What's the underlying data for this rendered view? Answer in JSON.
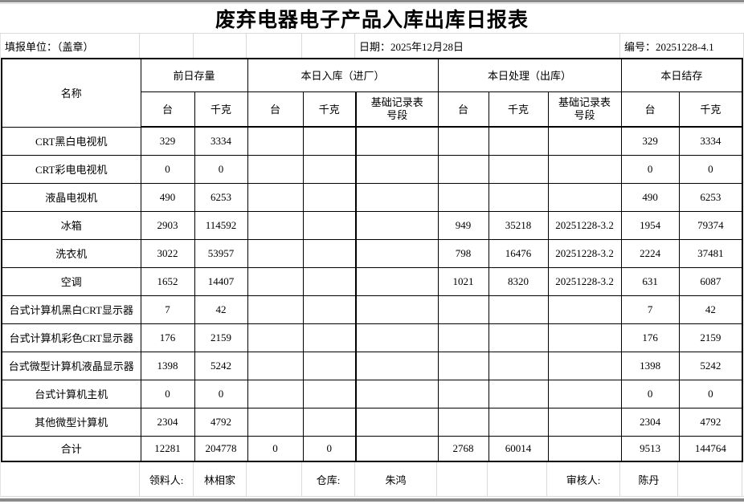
{
  "page": {
    "title": "废弃电器电子产品入库出库日报表"
  },
  "info": {
    "unit": "填报单位：（盖章）",
    "date": "日期：2025年12月28日",
    "code": "编号：20251228-4.1"
  },
  "table": {
    "header": {
      "name": "名称",
      "groups": [
        {
          "label": "前日存量",
          "cols": [
            "台",
            "千克"
          ]
        },
        {
          "label": "本日入库（进厂）",
          "cols": [
            "台",
            "千克",
            "基础记录表号段"
          ]
        },
        {
          "label": "本日处理（出库）",
          "cols": [
            "台",
            "千克",
            "基础记录表号段"
          ]
        },
        {
          "label": "本日结存",
          "cols": [
            "台",
            "千克"
          ]
        }
      ]
    },
    "rows": [
      {
        "name": "CRT黑白电视机",
        "cells": [
          "329",
          "3334",
          "",
          "",
          "",
          "",
          "",
          "",
          "329",
          "3334"
        ]
      },
      {
        "name": "CRT彩电电视机",
        "cells": [
          "0",
          "0",
          "",
          "",
          "",
          "",
          "",
          "",
          "0",
          "0"
        ]
      },
      {
        "name": "液晶电视机",
        "cells": [
          "490",
          "6253",
          "",
          "",
          "",
          "",
          "",
          "",
          "490",
          "6253"
        ]
      },
      {
        "name": "冰箱",
        "cells": [
          "2903",
          "114592",
          "",
          "",
          "",
          "949",
          "35218",
          "20251228-3.2",
          "1954",
          "79374"
        ]
      },
      {
        "name": "洗衣机",
        "cells": [
          "3022",
          "53957",
          "",
          "",
          "",
          "798",
          "16476",
          "20251228-3.2",
          "2224",
          "37481"
        ]
      },
      {
        "name": "空调",
        "cells": [
          "1652",
          "14407",
          "",
          "",
          "",
          "1021",
          "8320",
          "20251228-3.2",
          "631",
          "6087"
        ]
      },
      {
        "name": "台式计算机黑白CRT显示器",
        "cells": [
          "7",
          "42",
          "",
          "",
          "",
          "",
          "",
          "",
          "7",
          "42"
        ]
      },
      {
        "name": "台式计算机彩色CRT显示器",
        "cells": [
          "176",
          "2159",
          "",
          "",
          "",
          "",
          "",
          "",
          "176",
          "2159"
        ]
      },
      {
        "name": "台式微型计算机液晶显示器",
        "cells": [
          "1398",
          "5242",
          "",
          "",
          "",
          "",
          "",
          "",
          "1398",
          "5242"
        ]
      },
      {
        "name": "台式计算机主机",
        "cells": [
          "0",
          "0",
          "",
          "",
          "",
          "",
          "",
          "",
          "0",
          "0"
        ]
      },
      {
        "name": "其他微型计算机",
        "cells": [
          "2304",
          "4792",
          "",
          "",
          "",
          "",
          "",
          "",
          "2304",
          "4792"
        ]
      },
      {
        "name": "合计",
        "cells": [
          "12281",
          "204778",
          "0",
          "0",
          "",
          "2768",
          "60014",
          "",
          "9513",
          "144764"
        ]
      }
    ]
  },
  "footer": {
    "picker_label": "领料人:",
    "picker_name": "林相家",
    "warehouse_label": "仓库:",
    "warehouse_name": "朱鸿",
    "auditor_label": "审核人:",
    "auditor_name": "陈丹"
  }
}
